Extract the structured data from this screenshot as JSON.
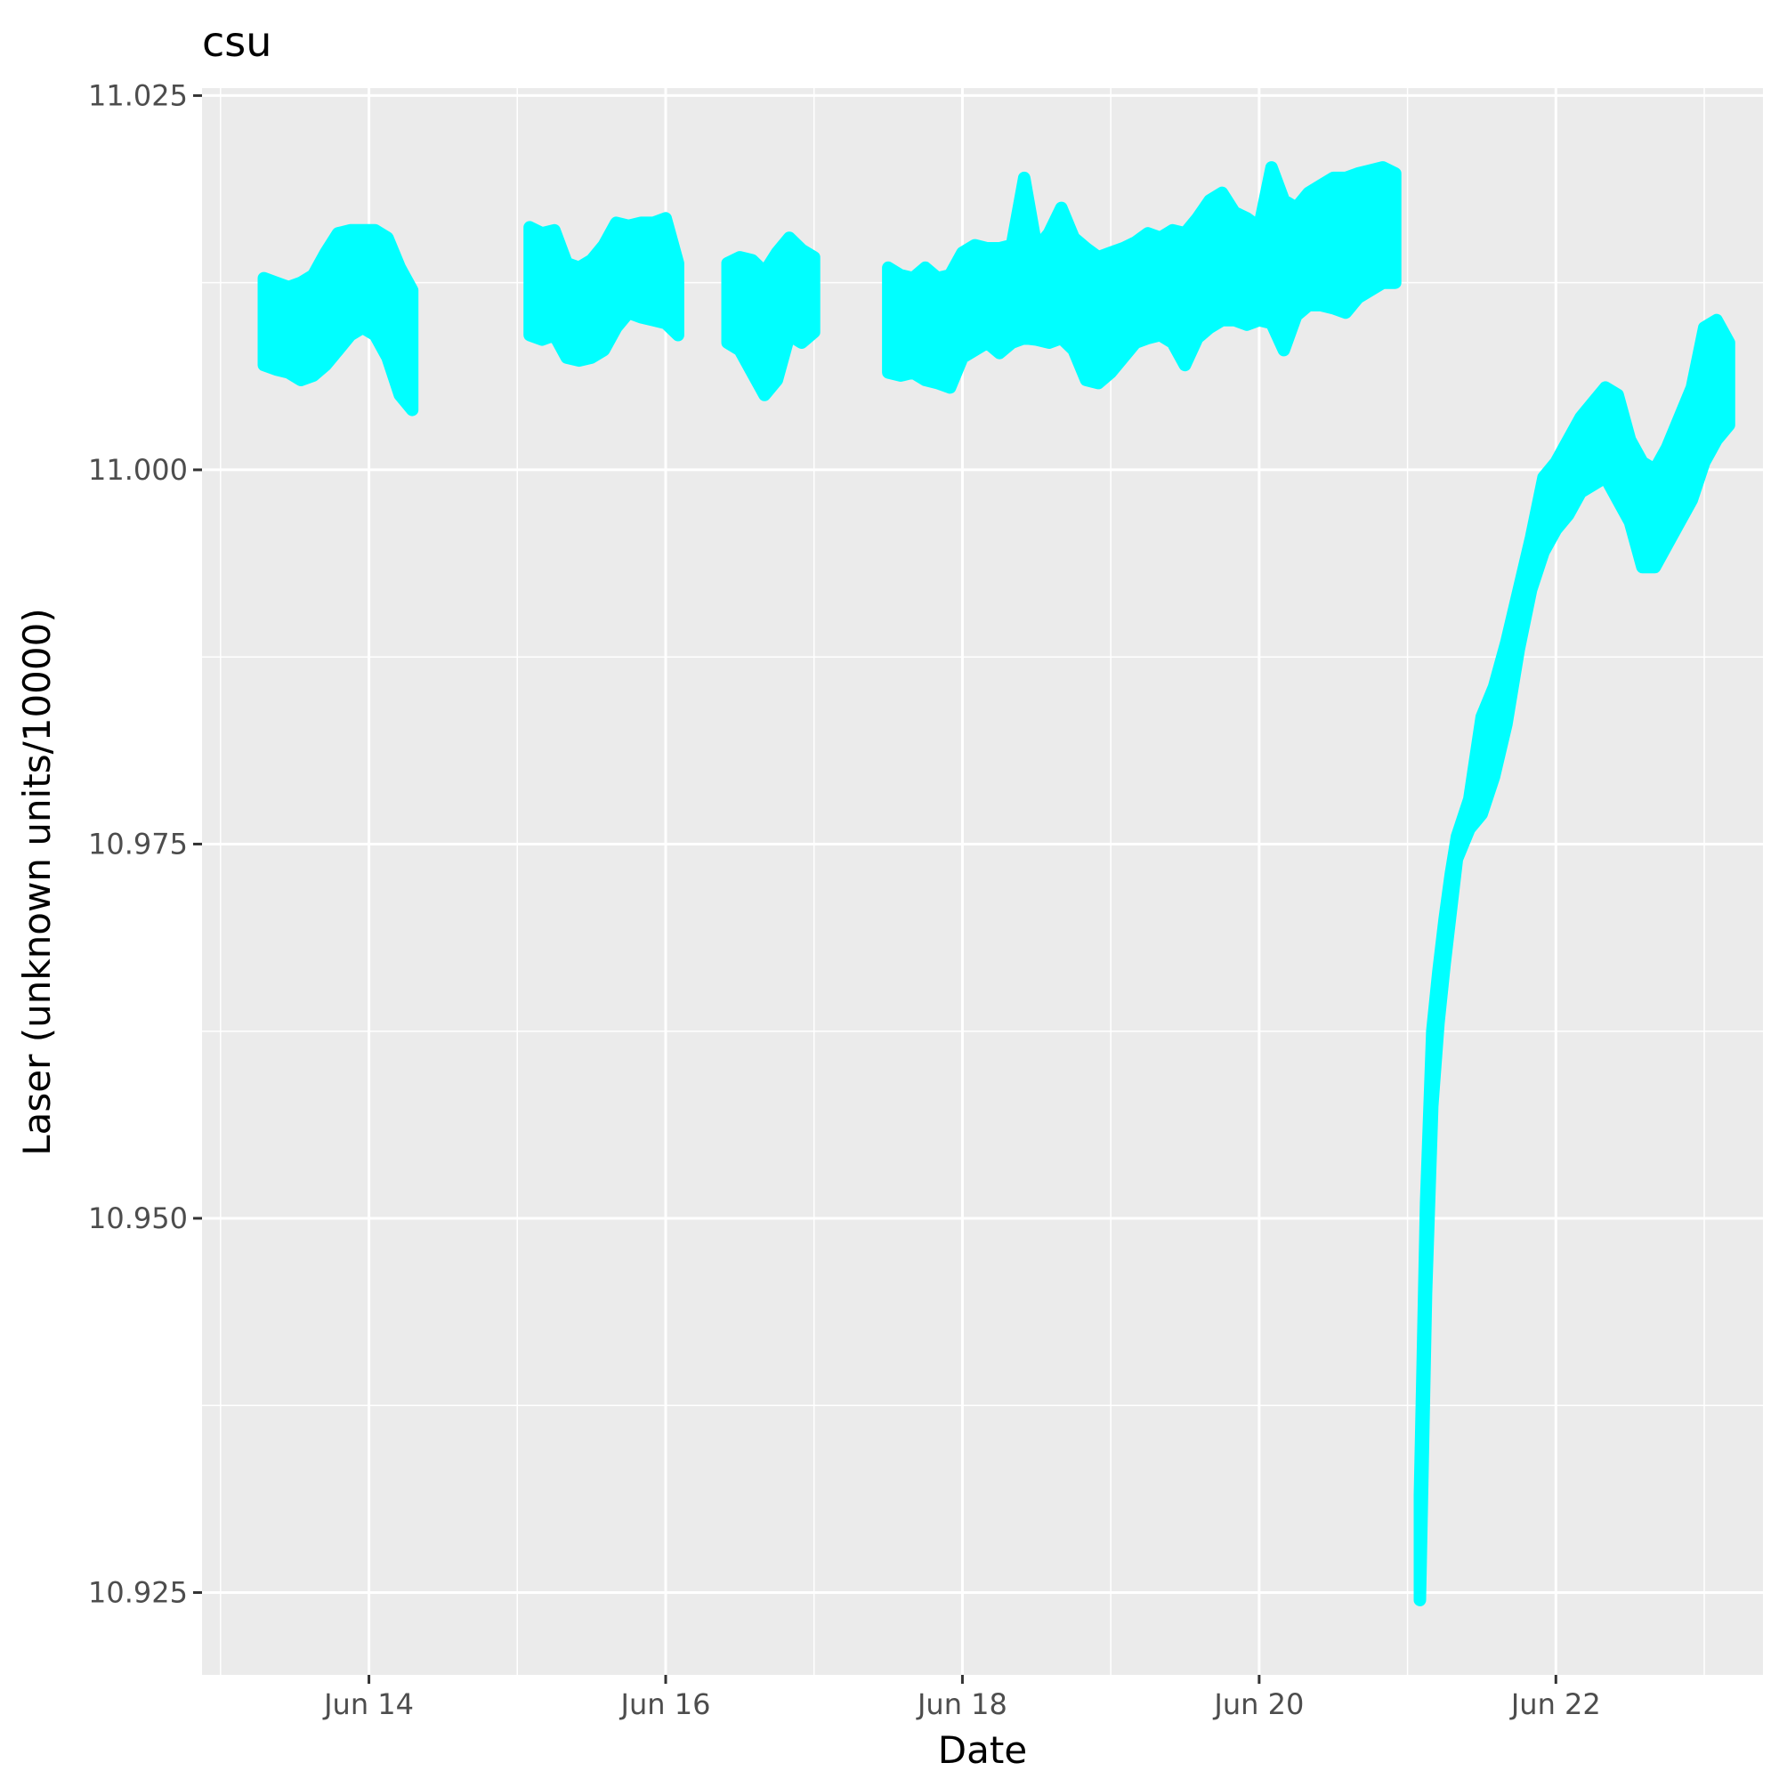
{
  "chart_data": {
    "type": "line",
    "title": "csu",
    "xlabel": "Date",
    "ylabel": "Laser (unknown units/10000)",
    "x_scale": "date",
    "xlim": [
      "2000-06-12T21:00",
      "2000-06-23T09:30"
    ],
    "ylim": [
      10.9195,
      11.0255
    ],
    "x_ticks": [
      {
        "value": "2000-06-14T00:00",
        "label": "Jun 14"
      },
      {
        "value": "2000-06-16T00:00",
        "label": "Jun 16"
      },
      {
        "value": "2000-06-18T00:00",
        "label": "Jun 18"
      },
      {
        "value": "2000-06-20T00:00",
        "label": "Jun 20"
      },
      {
        "value": "2000-06-22T00:00",
        "label": "Jun 22"
      }
    ],
    "x_minor_ticks": [
      "2000-06-13T00:00",
      "2000-06-15T00:00",
      "2000-06-17T00:00",
      "2000-06-19T00:00",
      "2000-06-21T00:00",
      "2000-06-23T00:00"
    ],
    "y_ticks": [
      {
        "value": 10.925,
        "label": "10.925"
      },
      {
        "value": 10.95,
        "label": "10.950"
      },
      {
        "value": 10.975,
        "label": "10.975"
      },
      {
        "value": 11.0,
        "label": "11.000"
      },
      {
        "value": 11.025,
        "label": "11.025"
      }
    ],
    "y_minor_ticks": [
      10.9375,
      10.9625,
      10.9875,
      11.0125
    ],
    "grid": true,
    "legend": "none",
    "colors": {
      "series": "#00FFFF",
      "panel": "#EBEBEB",
      "grid": "#FFFFFF"
    },
    "series": [
      {
        "segments": [
          {
            "x": [
              "2000-06-13T07:00",
              "2000-06-13T09:00",
              "2000-06-13T11:00",
              "2000-06-13T13:00",
              "2000-06-13T15:00",
              "2000-06-13T17:00",
              "2000-06-13T19:00",
              "2000-06-13T21:00",
              "2000-06-13T23:00",
              "2000-06-14T01:00",
              "2000-06-14T03:00",
              "2000-06-14T05:00",
              "2000-06-14T07:00"
            ],
            "y_min": [
              11.007,
              11.0067,
              11.0065,
              11.006,
              11.0063,
              11.007,
              11.008,
              11.009,
              11.0095,
              11.009,
              11.0075,
              11.005,
              11.004
            ],
            "y_max": [
              11.0128,
              11.0125,
              11.0122,
              11.0125,
              11.013,
              11.0145,
              11.0158,
              11.016,
              11.016,
              11.016,
              11.0155,
              11.0135,
              11.012
            ]
          },
          {
            "x": [
              "2000-06-15T02:00",
              "2000-06-15T04:00",
              "2000-06-15T06:00",
              "2000-06-15T08:00",
              "2000-06-15T10:00",
              "2000-06-15T12:00",
              "2000-06-15T14:00",
              "2000-06-15T16:00",
              "2000-06-15T18:00",
              "2000-06-15T20:00",
              "2000-06-15T22:00",
              "2000-06-16T00:00",
              "2000-06-16T02:00"
            ],
            "y_min": [
              11.009,
              11.0087,
              11.009,
              11.0075,
              11.0073,
              11.0075,
              11.008,
              11.0095,
              11.0105,
              11.0102,
              11.01,
              11.0098,
              11.009
            ],
            "y_max": [
              11.0162,
              11.0158,
              11.016,
              11.0138,
              11.0135,
              11.014,
              11.015,
              11.0165,
              11.0163,
              11.0165,
              11.0165,
              11.0168,
              11.0138
            ]
          },
          {
            "x": [
              "2000-06-16T10:00",
              "2000-06-16T12:00",
              "2000-06-16T14:00",
              "2000-06-16T16:00",
              "2000-06-16T18:00",
              "2000-06-16T20:00",
              "2000-06-16T22:00",
              "2000-06-17T00:00"
            ],
            "y_min": [
              11.0085,
              11.008,
              11.0065,
              11.005,
              11.006,
              11.009,
              11.0085,
              11.0092
            ],
            "y_max": [
              11.0138,
              11.0142,
              11.014,
              11.0132,
              11.0145,
              11.0155,
              11.0147,
              11.0142
            ]
          },
          {
            "x": [
              "2000-06-17T12:00",
              "2000-06-17T14:00",
              "2000-06-17T16:00",
              "2000-06-17T18:00",
              "2000-06-17T20:00",
              "2000-06-17T22:00",
              "2000-06-18T00:00",
              "2000-06-18T02:00",
              "2000-06-18T04:00",
              "2000-06-18T06:00",
              "2000-06-18T08:00",
              "2000-06-18T10:00",
              "2000-06-18T12:00",
              "2000-06-18T14:00",
              "2000-06-18T16:00",
              "2000-06-18T18:00",
              "2000-06-18T20:00",
              "2000-06-18T22:00",
              "2000-06-19T00:00",
              "2000-06-19T02:00",
              "2000-06-19T04:00",
              "2000-06-19T06:00",
              "2000-06-19T08:00",
              "2000-06-19T10:00",
              "2000-06-19T12:00",
              "2000-06-19T14:00",
              "2000-06-19T16:00",
              "2000-06-19T18:00",
              "2000-06-19T20:00",
              "2000-06-19T22:00",
              "2000-06-20T00:00",
              "2000-06-20T02:00",
              "2000-06-20T04:00",
              "2000-06-20T06:00",
              "2000-06-20T08:00",
              "2000-06-20T10:00",
              "2000-06-20T12:00",
              "2000-06-20T14:00",
              "2000-06-20T16:00",
              "2000-06-20T18:00",
              "2000-06-20T20:00",
              "2000-06-20T22:00"
            ],
            "y_min": [
              11.0065,
              11.0063,
              11.0065,
              11.006,
              11.0058,
              11.0055,
              11.0075,
              11.008,
              11.0085,
              11.0078,
              11.0085,
              11.0088,
              11.0087,
              11.0085,
              11.0088,
              11.008,
              11.006,
              11.0058,
              11.0065,
              11.0075,
              11.0085,
              11.0088,
              11.009,
              11.0085,
              11.007,
              11.0088,
              11.0095,
              11.01,
              11.01,
              11.0097,
              11.01,
              11.0098,
              11.008,
              11.0103,
              11.011,
              11.011,
              11.0108,
              11.0105,
              11.0115,
              11.012,
              11.0125,
              11.0125
            ],
            "y_max": [
              11.0135,
              11.013,
              11.0128,
              11.0135,
              11.0128,
              11.013,
              11.0145,
              11.015,
              11.0148,
              11.0148,
              11.015,
              11.0195,
              11.0148,
              11.0158,
              11.0175,
              11.0155,
              11.0148,
              11.0142,
              11.0145,
              11.0148,
              11.0152,
              11.0158,
              11.0155,
              11.016,
              11.0158,
              11.0168,
              11.018,
              11.0185,
              11.0172,
              11.0168,
              11.0162,
              11.0202,
              11.018,
              11.0175,
              11.0185,
              11.019,
              11.0195,
              11.0195,
              11.0198,
              11.02,
              11.0202,
              11.0198
            ]
          },
          {
            "x": [
              "2000-06-21T02:00",
              "2000-06-21T03:00",
              "2000-06-21T04:00",
              "2000-06-21T05:00",
              "2000-06-21T06:00",
              "2000-06-21T07:00",
              "2000-06-21T08:00",
              "2000-06-21T10:00",
              "2000-06-21T12:00",
              "2000-06-21T14:00",
              "2000-06-21T16:00",
              "2000-06-21T18:00",
              "2000-06-21T20:00",
              "2000-06-21T22:00",
              "2000-06-22T00:00",
              "2000-06-22T02:00",
              "2000-06-22T04:00",
              "2000-06-22T06:00",
              "2000-06-22T08:00",
              "2000-06-22T10:00",
              "2000-06-22T12:00",
              "2000-06-22T14:00",
              "2000-06-22T16:00",
              "2000-06-22T18:00",
              "2000-06-22T20:00",
              "2000-06-22T22:00",
              "2000-06-23T00:00",
              "2000-06-23T02:00",
              "2000-06-23T04:00"
            ],
            "y_min": [
              10.9245,
              10.945,
              10.9575,
              10.963,
              10.967,
              10.9705,
              10.974,
              10.976,
              10.977,
              10.9795,
              10.983,
              10.988,
              10.992,
              10.9945,
              10.996,
              10.997,
              10.9985,
              10.999,
              10.9995,
              10.998,
              10.9965,
              10.9935,
              10.9935,
              10.995,
              10.9965,
              10.998,
              11.0005,
              11.002,
              11.003
            ],
            "y_max": [
              10.9315,
              10.951,
              10.9625,
              10.9665,
              10.97,
              10.973,
              10.9755,
              10.978,
              10.9835,
              10.9855,
              10.9885,
              10.992,
              10.9955,
              10.9995,
              11.0005,
              11.002,
              11.0035,
              11.0045,
              11.0055,
              11.005,
              11.002,
              11.0005,
              11.0,
              11.0015,
              11.0035,
              11.0055,
              11.0095,
              11.01,
              11.0085
            ]
          }
        ]
      }
    ]
  }
}
